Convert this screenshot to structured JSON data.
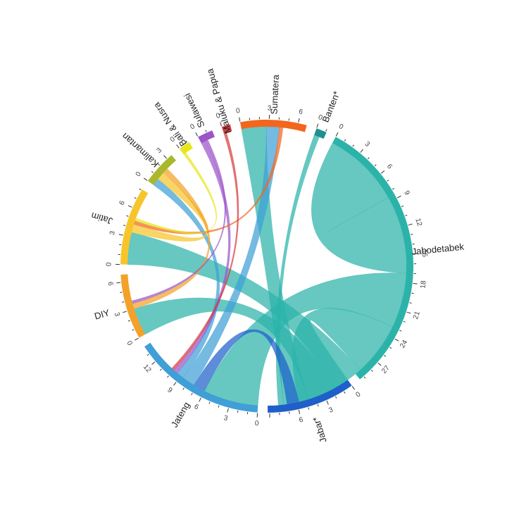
{
  "chart_data": {
    "type": "chord",
    "groups": [
      {
        "name": "Jabodetabek",
        "total": 29.5,
        "color": "#2bb3a9",
        "ticks": [
          "0",
          "3",
          "6",
          "9",
          "12",
          "15",
          "18",
          "21",
          "24",
          "27"
        ]
      },
      {
        "name": "Jabar*",
        "total": 9.2,
        "color": "#1f5fc9",
        "ticks": [
          "0",
          "3",
          "6"
        ]
      },
      {
        "name": "Jateng",
        "total": 13.9,
        "color": "#3f9fd6",
        "ticks": [
          "0",
          "3",
          "6",
          "9",
          "12"
        ]
      },
      {
        "name": "DIY",
        "total": 6.8,
        "color": "#f2a22a",
        "ticks": [
          "0",
          "3",
          "6"
        ]
      },
      {
        "name": "Jatim",
        "total": 8.1,
        "color": "#f7c52b",
        "ticks": [
          "0",
          "3",
          "6"
        ]
      },
      {
        "name": "Kalimantan",
        "total": 3.6,
        "color": "#a9b82c",
        "ticks": [
          "0",
          "3"
        ]
      },
      {
        "name": "Bali & Nusra",
        "total": 1.2,
        "color": "#e6e61a",
        "ticks": [
          "0"
        ]
      },
      {
        "name": "Sulawesi",
        "total": 1.6,
        "color": "#9b55c9",
        "ticks": [
          "0"
        ]
      },
      {
        "name": "Maluku & Papua",
        "total": 0.9,
        "color": "#d83a3a",
        "ticks": [
          "0"
        ]
      },
      {
        "name": "Sumatera",
        "total": 6.9,
        "color": "#f2661e",
        "ticks": [
          "0",
          "3",
          "6"
        ]
      },
      {
        "name": "Banten*",
        "total": 1.1,
        "color": "#1f8f8f",
        "ticks": [
          "0"
        ]
      }
    ],
    "flows": [
      {
        "from": "Jabodetabek",
        "to": "Jabodetabek",
        "value": 8.5
      },
      {
        "from": "Jabodetabek",
        "to": "Jateng",
        "value": 6.0
      },
      {
        "from": "Jabodetabek",
        "to": "Jabar*",
        "value": 5.8
      },
      {
        "from": "Jabodetabek",
        "to": "Jatim",
        "value": 3.5
      },
      {
        "from": "Jabodetabek",
        "to": "DIY",
        "value": 3.0
      },
      {
        "from": "Jabodetabek",
        "to": "Sumatera",
        "value": 2.7
      },
      {
        "from": "Jabodetabek",
        "to": "Banten*",
        "value": 0.6
      },
      {
        "from": "Jabar*",
        "to": "Jateng",
        "value": 1.3
      },
      {
        "from": "Jateng",
        "to": "Sumatera",
        "value": 1.4
      },
      {
        "from": "Jateng",
        "to": "Kalimantan",
        "value": 0.8
      },
      {
        "from": "Jatim",
        "to": "Kalimantan",
        "value": 0.9
      },
      {
        "from": "DIY",
        "to": "Kalimantan",
        "value": 0.6
      },
      {
        "from": "Sulawesi",
        "to": "Jateng",
        "value": 0.5
      },
      {
        "from": "Sumatera",
        "to": "Jatim",
        "value": 0.4
      },
      {
        "from": "Bali & Nusra",
        "to": "Jatim",
        "value": 0.3
      },
      {
        "from": "Maluku & Papua",
        "to": "Jateng",
        "value": 0.3
      },
      {
        "from": "Sulawesi",
        "to": "DIY",
        "value": 0.3
      }
    ]
  }
}
